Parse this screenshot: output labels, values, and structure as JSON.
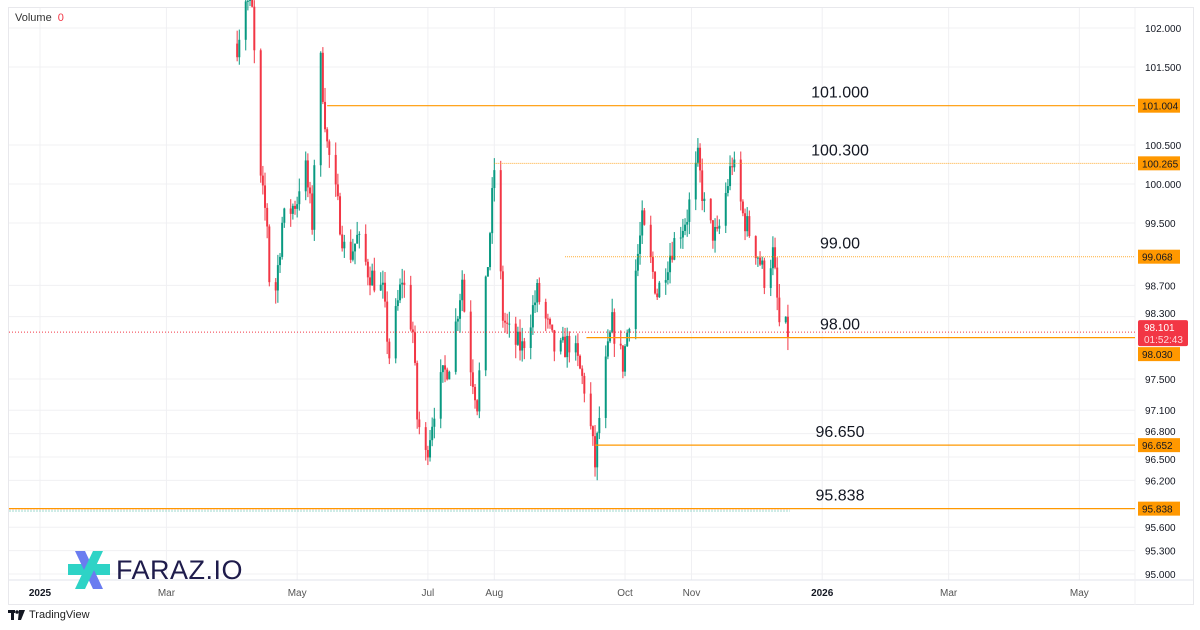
{
  "legend": {
    "volume_label": "Volume",
    "volume_value": "0"
  },
  "colors": {
    "up": "#089981",
    "down": "#f23645",
    "level": "#ff9800",
    "last_price": "#f23645",
    "grid": "#f0f0f3"
  },
  "chart_data": {
    "type": "candlestick",
    "title": "",
    "xlabel": "",
    "ylabel": "",
    "ylim": [
      95.0,
      102.0
    ],
    "xlim": [
      "2024-12-08",
      "2026-06-10"
    ],
    "grid": true,
    "y_ticks": [
      "102.000",
      "101.500",
      "100.500",
      "100.000",
      "99.500",
      "98.700",
      "98.300",
      "97.500",
      "97.100",
      "96.800",
      "96.500",
      "96.200",
      "95.600",
      "95.300",
      "95.000"
    ],
    "y_tick_values": [
      102.0,
      101.5,
      100.5,
      100.0,
      99.5,
      98.7,
      98.3,
      97.5,
      97.1,
      96.8,
      96.5,
      96.2,
      95.6,
      95.3,
      95.0
    ],
    "x_ticks": [
      {
        "label": "2025",
        "date": "2025-01-01",
        "bold": true
      },
      {
        "label": "Mar",
        "date": "2025-03-01"
      },
      {
        "label": "May",
        "date": "2025-05-01"
      },
      {
        "label": "Jul",
        "date": "2025-07-01"
      },
      {
        "label": "Aug",
        "date": "2025-08-01"
      },
      {
        "label": "Oct",
        "date": "2025-10-01"
      },
      {
        "label": "Nov",
        "date": "2025-11-01"
      },
      {
        "label": "2026",
        "date": "2026-01-01",
        "bold": true
      },
      {
        "label": "Mar",
        "date": "2026-03-01"
      },
      {
        "label": "May",
        "date": "2026-05-01"
      }
    ],
    "close_anchors": [
      [
        "2025-04-03",
        101.8
      ],
      [
        "2025-04-07",
        102.4
      ],
      [
        "2025-04-10",
        102.2
      ],
      [
        "2025-04-14",
        100.0
      ],
      [
        "2025-04-17",
        99.5
      ],
      [
        "2025-04-19",
        98.1
      ],
      [
        "2025-04-24",
        99.5
      ],
      [
        "2025-05-01",
        99.8
      ],
      [
        "2025-05-04",
        100.4
      ],
      [
        "2025-05-08",
        99.5
      ],
      [
        "2025-05-11",
        101.9
      ],
      [
        "2025-05-15",
        100.5
      ],
      [
        "2025-05-20",
        99.7
      ],
      [
        "2025-05-24",
        99.0
      ],
      [
        "2025-05-29",
        99.3
      ],
      [
        "2025-06-03",
        98.9
      ],
      [
        "2025-06-10",
        98.6
      ],
      [
        "2025-06-13",
        97.8
      ],
      [
        "2025-06-19",
        98.8
      ],
      [
        "2025-06-24",
        98.1
      ],
      [
        "2025-06-26",
        97.0
      ],
      [
        "2025-06-30",
        96.5
      ],
      [
        "2025-07-05",
        97.3
      ],
      [
        "2025-07-12",
        97.8
      ],
      [
        "2025-07-17",
        98.8
      ],
      [
        "2025-07-19",
        98.0
      ],
      [
        "2025-07-24",
        97.2
      ],
      [
        "2025-07-29",
        99.0
      ],
      [
        "2025-08-01",
        100.2
      ],
      [
        "2025-08-05",
        98.3
      ],
      [
        "2025-08-09",
        98.0
      ],
      [
        "2025-08-14",
        97.9
      ],
      [
        "2025-08-21",
        98.6
      ],
      [
        "2025-08-30",
        97.8
      ],
      [
        "2025-09-06",
        98.0
      ],
      [
        "2025-09-13",
        97.3
      ],
      [
        "2025-09-17",
        96.4
      ],
      [
        "2025-09-20",
        97.3
      ],
      [
        "2025-09-25",
        98.2
      ],
      [
        "2025-09-30",
        97.7
      ],
      [
        "2025-10-04",
        98.5
      ],
      [
        "2025-10-09",
        99.5
      ],
      [
        "2025-10-16",
        98.6
      ],
      [
        "2025-10-23",
        99.2
      ],
      [
        "2025-10-30",
        99.6
      ],
      [
        "2025-11-04",
        100.3
      ],
      [
        "2025-11-08",
        99.5
      ],
      [
        "2025-11-13",
        99.3
      ],
      [
        "2025-11-20",
        100.3
      ],
      [
        "2025-11-25",
        99.6
      ],
      [
        "2025-12-02",
        99.1
      ],
      [
        "2025-12-05",
        98.8
      ],
      [
        "2025-12-09",
        99.1
      ],
      [
        "2025-12-12",
        98.2
      ],
      [
        "2025-12-16",
        98.1
      ]
    ],
    "levels": [
      {
        "label": "101.000",
        "axis_label": "101.004",
        "price": 101.004,
        "from": "2025-05-15",
        "style": "solid"
      },
      {
        "label": "100.300",
        "axis_label": "100.265",
        "price": 100.265,
        "from": "2025-08-01",
        "style": "dotted"
      },
      {
        "label": "99.00",
        "axis_label": "99.068",
        "price": 99.068,
        "from": "2025-09-03",
        "style": "dotted"
      },
      {
        "label": "98.00",
        "axis_label": "98.030",
        "price": 98.03,
        "from": "2025-09-13",
        "style": "solid"
      },
      {
        "label": "96.650",
        "axis_label": "96.652",
        "price": 96.652,
        "from": "2025-09-17",
        "style": "solid"
      },
      {
        "label": "95.838",
        "axis_label": "95.838",
        "price": 95.838,
        "from": "2024-12-08",
        "style": "solid"
      }
    ],
    "last_price": {
      "value": "98.101",
      "price": 98.101,
      "countdown": "01:52:43"
    }
  },
  "branding": {
    "watermark": "FARAZ.IO",
    "footer": "TradingView"
  }
}
